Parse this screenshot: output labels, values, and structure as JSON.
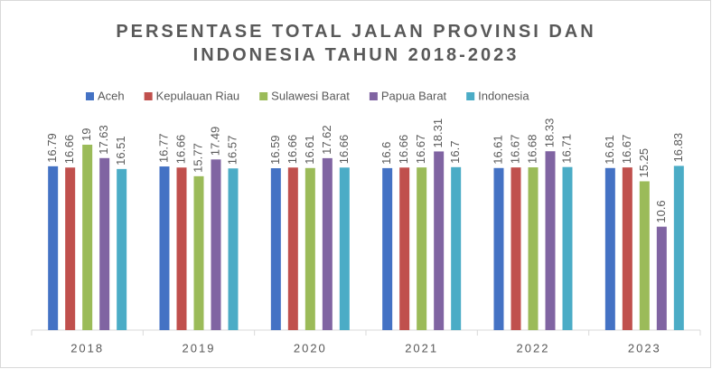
{
  "chart_data": {
    "type": "bar",
    "title": "PERSENTASE TOTAL JALAN PROVINSI DAN INDONESIA TAHUN 2018-2023",
    "categories": [
      "2018",
      "2019",
      "2020",
      "2021",
      "2022",
      "2023"
    ],
    "series": [
      {
        "name": "Aceh",
        "color": "#4472c4",
        "values": [
          16.79,
          16.77,
          16.59,
          16.6,
          16.61,
          16.61
        ]
      },
      {
        "name": "Kepulauan Riau",
        "color": "#c0504d",
        "values": [
          16.66,
          16.66,
          16.66,
          16.66,
          16.67,
          16.67
        ]
      },
      {
        "name": "Sulawesi Barat",
        "color": "#9bbb59",
        "values": [
          19,
          15.77,
          16.61,
          16.67,
          16.68,
          15.25
        ]
      },
      {
        "name": "Papua Barat",
        "color": "#8064a2",
        "values": [
          17.63,
          17.49,
          17.62,
          18.31,
          18.33,
          10.6
        ]
      },
      {
        "name": "Indonesia",
        "color": "#4bacc6",
        "values": [
          16.51,
          16.57,
          16.66,
          16.7,
          16.71,
          16.83
        ]
      }
    ]
  }
}
